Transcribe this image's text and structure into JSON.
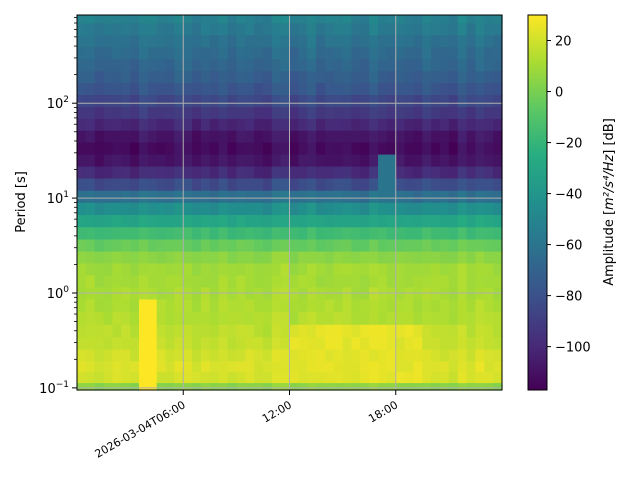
{
  "chart_data": {
    "type": "heatmap",
    "title": "",
    "xlabel": "",
    "ylabel": "Period [s]",
    "colorbar_label_prefix": "Amplitude [",
    "colorbar_label_math": "m²/s⁴/Hz",
    "colorbar_label_suffix": "] [dB]",
    "x_axis": {
      "type": "datetime",
      "range": [
        "2026-03-04T00:00",
        "2026-03-05T00:00"
      ],
      "ticks": [
        {
          "time": "2026-03-04T06:00",
          "label": "2026-03-04T06:00"
        },
        {
          "time": "2026-03-04T12:00",
          "label": "12:00"
        },
        {
          "time": "2026-03-04T18:00",
          "label": "18:00"
        }
      ]
    },
    "y_axis": {
      "scale": "log",
      "range": [
        0.095,
        850
      ],
      "ticks": [
        {
          "value": 0.1,
          "label": "10",
          "exp": "−1"
        },
        {
          "value": 1,
          "label": "10",
          "exp": "0"
        },
        {
          "value": 10,
          "label": "10",
          "exp": "1"
        },
        {
          "value": 100,
          "label": "10",
          "exp": "2"
        }
      ]
    },
    "colorbar": {
      "colormap": "viridis",
      "vmin": -117,
      "vmax": 30,
      "ticks": [
        20,
        0,
        -20,
        -40,
        -60,
        -80,
        -100
      ],
      "tick_labels": [
        "20",
        "0",
        "−20",
        "−40",
        "−60",
        "−80",
        "−100"
      ]
    },
    "grid": true,
    "periods_s": [
      0.1,
      0.13,
      0.17,
      0.22,
      0.3,
      0.4,
      0.55,
      0.75,
      1.0,
      1.35,
      1.8,
      2.4,
      3.2,
      4.3,
      5.8,
      7.8,
      10.5,
      14,
      19,
      25,
      34,
      45,
      60,
      80,
      107,
      143,
      190,
      255,
      340,
      455,
      610,
      815
    ],
    "amplitude_profile_db": [
      5,
      21,
      23,
      21,
      18,
      16,
      14,
      13,
      12,
      11,
      10,
      5,
      -4,
      -16,
      -30,
      -44,
      -62,
      -82,
      -98,
      -108,
      -112,
      -108,
      -100,
      -92,
      -84,
      -77,
      -72,
      -68,
      -65,
      -61,
      -56,
      -52
    ],
    "time_slices": 48,
    "features": [
      {
        "description": "strong short-period burst",
        "time": "2026-03-04T04:00",
        "duration_h": 0.5,
        "period_range": [
          0.1,
          0.75
        ],
        "amplitude_db": 30
      },
      {
        "description": "elevated short-period noise",
        "time_range": [
          "2026-03-04T12:00",
          "2026-03-04T19:30"
        ],
        "period_range": [
          0.13,
          0.4
        ],
        "amplitude_db": 27
      },
      {
        "description": "long-period anomaly",
        "time": "2026-03-04T17:30",
        "period_range": [
          8,
          30
        ],
        "amplitude_db": -60
      }
    ]
  }
}
